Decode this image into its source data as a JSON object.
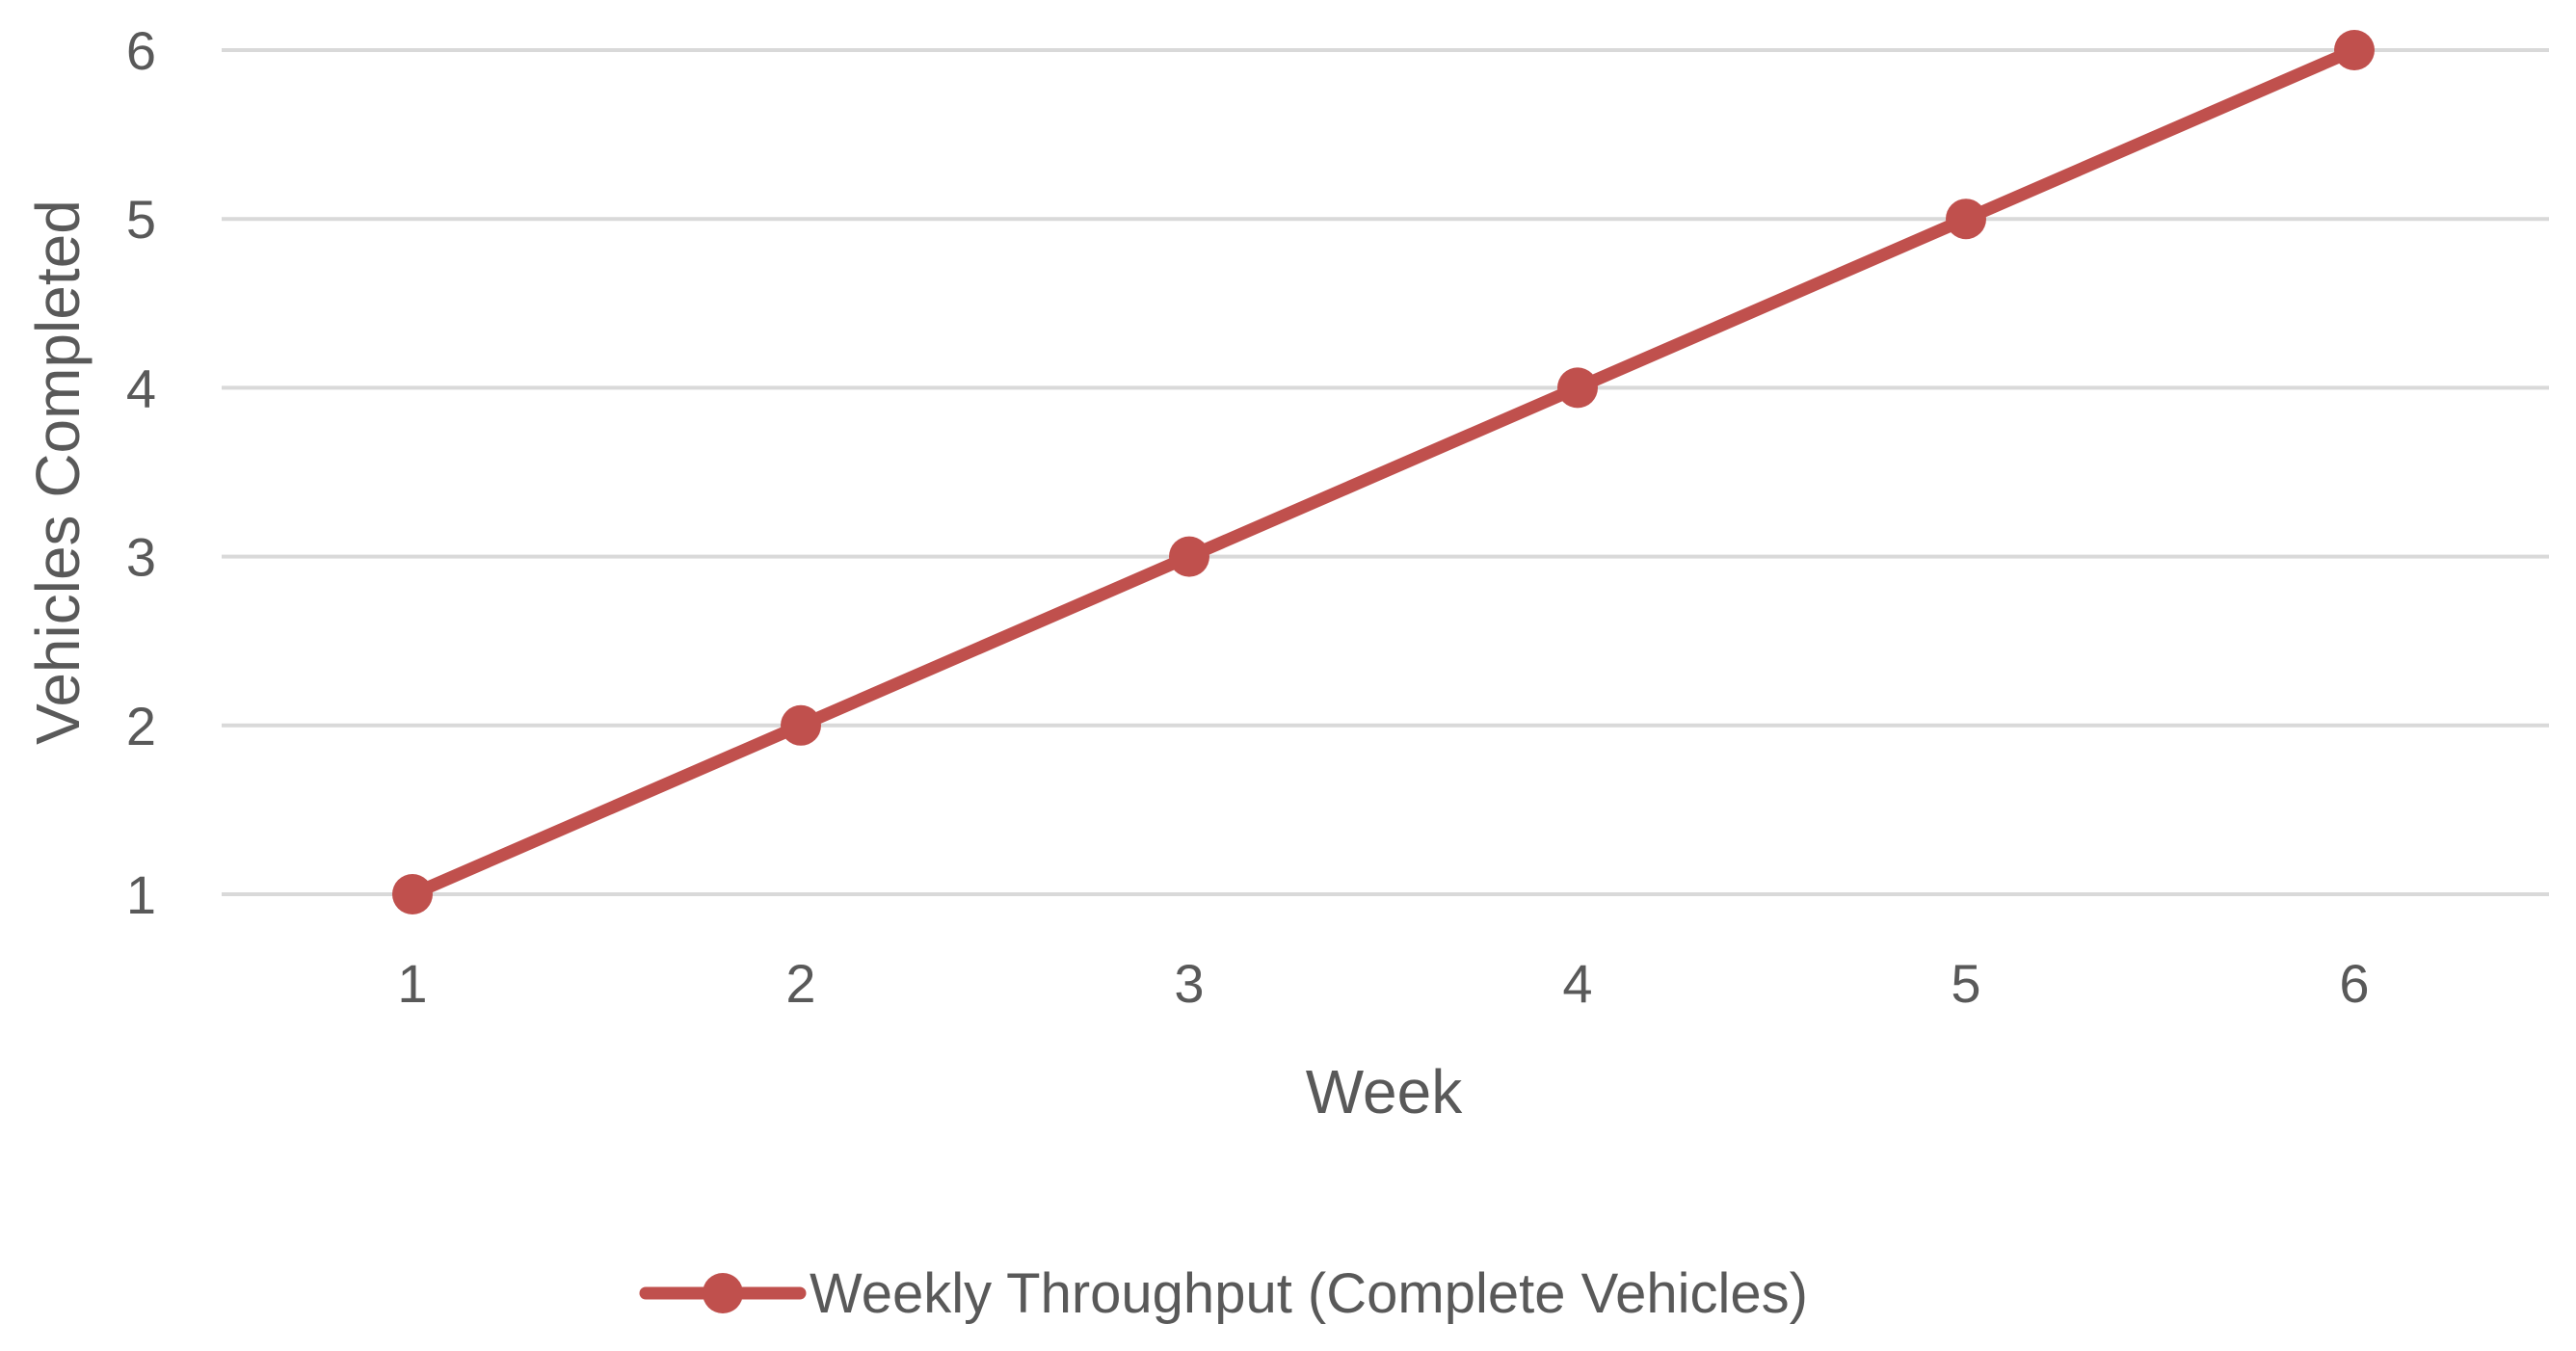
{
  "chart_data": {
    "type": "line",
    "x": [
      1,
      2,
      3,
      4,
      5,
      6
    ],
    "x_tick_labels": [
      "1",
      "2",
      "3",
      "4",
      "5",
      "6"
    ],
    "y_tick_labels": [
      "1",
      "2",
      "3",
      "4",
      "5",
      "6"
    ],
    "series": [
      {
        "name": "Weekly Throughput (Complete Vehicles)",
        "values": [
          1,
          2,
          3,
          4,
          5,
          6
        ],
        "color": "#c0504d",
        "marker": "circle"
      }
    ],
    "xlabel": "Week",
    "ylabel": "Vehicles Completed",
    "xlim": [
      0.5,
      6.5
    ],
    "ylim": [
      1,
      6
    ],
    "grid": true,
    "legend_position": "bottom"
  }
}
